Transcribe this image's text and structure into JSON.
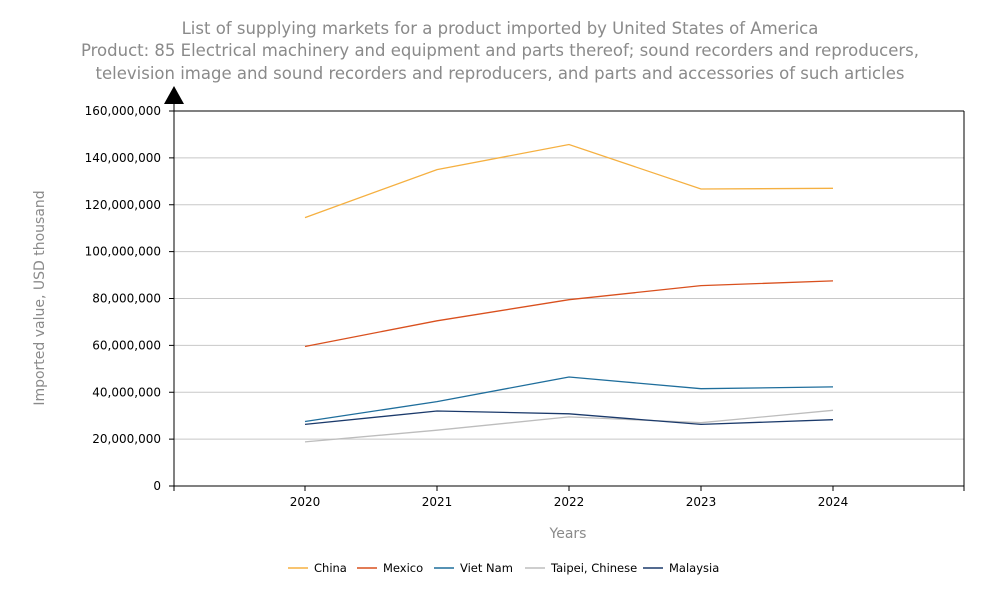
{
  "chart_data": {
    "type": "line",
    "title_line1": "List of supplying markets for a product imported by United States of America",
    "title_line2": "Product: 85 Electrical machinery and equipment and parts thereof; sound recorders and reproducers,",
    "title_line3": "television image and sound recorders and reproducers, and parts and accessories of such articles",
    "xlabel": "Years",
    "ylabel": "Imported value, USD thousand",
    "x": [
      "2020",
      "2021",
      "2022",
      "2023",
      "2024"
    ],
    "ylim": [
      0,
      160000000
    ],
    "yticks": [
      0,
      20000000,
      40000000,
      60000000,
      80000000,
      100000000,
      120000000,
      140000000,
      160000000
    ],
    "ytick_labels": [
      "0",
      "20,000,000",
      "40,000,000",
      "60,000,000",
      "80,000,000",
      "100,000,000",
      "120,000,000",
      "140,000,000",
      "160,000,000"
    ],
    "grid": "horizontal",
    "legend_position": "bottom",
    "series": [
      {
        "name": "China",
        "color": "#f5b041",
        "values": [
          114500000,
          135000000,
          145700000,
          126700000,
          127000000
        ]
      },
      {
        "name": "Mexico",
        "color": "#d9501e",
        "values": [
          59500000,
          70500000,
          79500000,
          85500000,
          87500000
        ]
      },
      {
        "name": "Viet Nam",
        "color": "#1f6e9c",
        "values": [
          27500000,
          36000000,
          46500000,
          41500000,
          42300000
        ]
      },
      {
        "name": "Taipei, Chinese",
        "color": "#bdbdbd",
        "values": [
          18800000,
          23800000,
          29500000,
          27000000,
          32300000
        ]
      },
      {
        "name": "Malaysia",
        "color": "#1b3a6b",
        "values": [
          26300000,
          32000000,
          30800000,
          26300000,
          28300000
        ]
      }
    ]
  }
}
